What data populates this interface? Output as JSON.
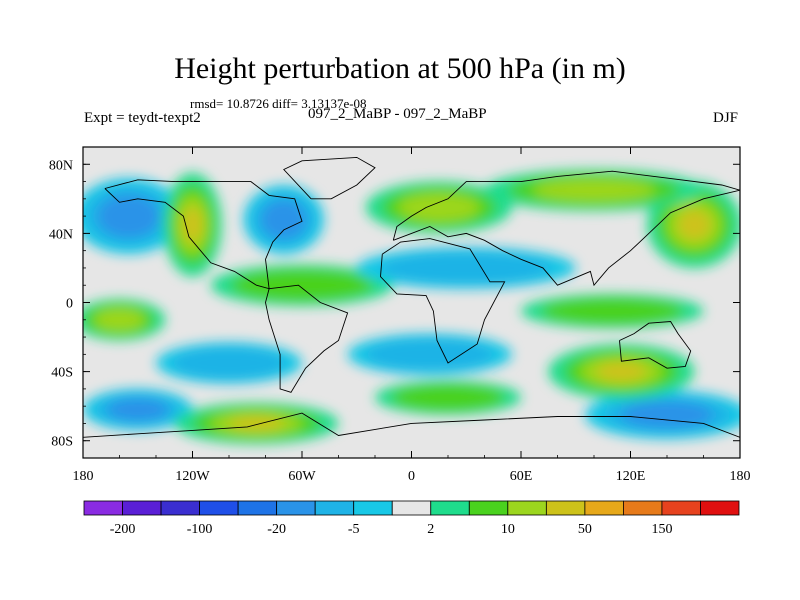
{
  "title": "Height perturbation at 500 hPa (in m)",
  "stats_line": "rmsd= 10.8726 diff= 3.13137e-08",
  "left_label": "Expt = teydt-texpt2",
  "subtitle": "097_2_MaBP - 097_2_MaBP",
  "right_label": "DJF",
  "chart_data": {
    "type": "heatmap",
    "title": "Height perturbation at 500 hPa (in m)",
    "xlabel": "",
    "ylabel": "",
    "xlim": [
      -180,
      180
    ],
    "ylim": [
      -90,
      90
    ],
    "x_ticks": [
      {
        "value": -180,
        "label": "180"
      },
      {
        "value": -120,
        "label": "120W"
      },
      {
        "value": -60,
        "label": "60W"
      },
      {
        "value": 0,
        "label": "0"
      },
      {
        "value": 60,
        "label": "60E"
      },
      {
        "value": 120,
        "label": "120E"
      },
      {
        "value": 180,
        "label": "180"
      }
    ],
    "y_ticks": [
      {
        "value": 80,
        "label": "80N"
      },
      {
        "value": 40,
        "label": "40N"
      },
      {
        "value": 0,
        "label": "0"
      },
      {
        "value": -40,
        "label": "40S"
      },
      {
        "value": -80,
        "label": "80S"
      }
    ],
    "colorbar": {
      "colors": [
        "#8a2be2",
        "#5a1fd6",
        "#3a2ed0",
        "#1f4fe8",
        "#1e73e6",
        "#2a93e8",
        "#1fb3e6",
        "#18c8e6",
        "#e6e6e6",
        "#1fdc8c",
        "#4ad21e",
        "#9cd61e",
        "#cdc21a",
        "#e6a81a",
        "#e67a1a",
        "#e6421e",
        "#e01010"
      ],
      "labels": [
        {
          "edge": 1,
          "text": "-200"
        },
        {
          "edge": 3,
          "text": "-100"
        },
        {
          "edge": 5,
          "text": "-20"
        },
        {
          "edge": 7,
          "text": "-5"
        },
        {
          "edge": 9,
          "text": "2"
        },
        {
          "edge": 11,
          "text": "10"
        },
        {
          "edge": 13,
          "text": "50"
        },
        {
          "edge": 15,
          "text": "150"
        }
      ]
    },
    "features": [
      {
        "lon": -155,
        "lat": 50,
        "rx": 30,
        "ry": 22,
        "level": -2
      },
      {
        "lon": -70,
        "lat": 48,
        "rx": 22,
        "ry": 20,
        "level": -2
      },
      {
        "lon": -150,
        "lat": -62,
        "rx": 30,
        "ry": 12,
        "level": -2
      },
      {
        "lon": 140,
        "lat": -65,
        "rx": 45,
        "ry": 14,
        "level": -2
      },
      {
        "lon": -120,
        "lat": 45,
        "rx": 16,
        "ry": 30,
        "level": 3
      },
      {
        "lon": 155,
        "lat": 45,
        "rx": 26,
        "ry": 25,
        "level": 3
      },
      {
        "lon": 100,
        "lat": 65,
        "rx": 60,
        "ry": 12,
        "level": 2
      },
      {
        "lon": 15,
        "lat": 55,
        "rx": 40,
        "ry": 15,
        "level": 2
      },
      {
        "lon": -85,
        "lat": -70,
        "rx": 45,
        "ry": 12,
        "level": 3
      },
      {
        "lon": 115,
        "lat": -40,
        "rx": 40,
        "ry": 16,
        "level": 3
      },
      {
        "lon": -100,
        "lat": -35,
        "rx": 40,
        "ry": 12,
        "level": -1
      },
      {
        "lon": 30,
        "lat": 20,
        "rx": 60,
        "ry": 12,
        "level": -1
      },
      {
        "lon": 10,
        "lat": -30,
        "rx": 45,
        "ry": 12,
        "level": -1
      },
      {
        "lon": -60,
        "lat": 10,
        "rx": 50,
        "ry": 12,
        "level": 1
      },
      {
        "lon": 110,
        "lat": -5,
        "rx": 50,
        "ry": 10,
        "level": 1
      },
      {
        "lon": -160,
        "lat": -10,
        "rx": 25,
        "ry": 12,
        "level": 2
      },
      {
        "lon": 20,
        "lat": -55,
        "rx": 40,
        "ry": 10,
        "level": 1
      }
    ]
  }
}
